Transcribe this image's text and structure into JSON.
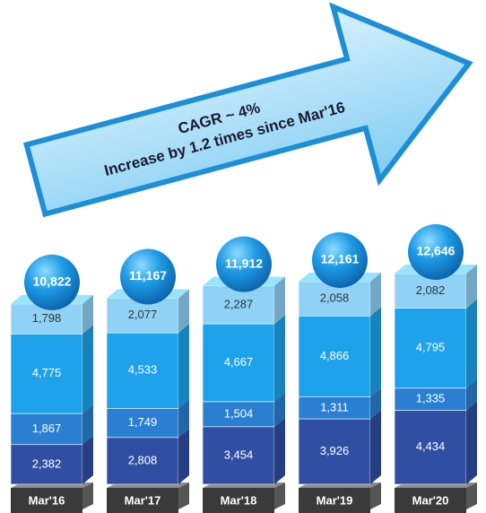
{
  "chart_data": {
    "type": "stacked-bar",
    "annotations": [
      "CAGR ~ 4%",
      "Increase by 1.2 times since Mar'16"
    ],
    "categories": [
      "Mar'16",
      "Mar'17",
      "Mar'18",
      "Mar'19",
      "Mar'20"
    ],
    "series": [
      {
        "color": "#2f4fa3",
        "values": [
          2382,
          2808,
          3454,
          3926,
          4434
        ],
        "value_labels": [
          "2,382",
          "2,808",
          "3,454",
          "3,926",
          "4,434"
        ]
      },
      {
        "color": "#2b7fd1",
        "values": [
          1867,
          1749,
          1504,
          1311,
          1335
        ],
        "value_labels": [
          "1,867",
          "1,749",
          "1,504",
          "1,311",
          "1,335"
        ]
      },
      {
        "color": "#1ea2ec",
        "values": [
          4775,
          4533,
          4667,
          4866,
          4795
        ],
        "value_labels": [
          "4,775",
          "4,533",
          "4,667",
          "4,866",
          "4,795"
        ]
      },
      {
        "color": "#8fd2f5",
        "values": [
          1798,
          2077,
          2287,
          2058,
          2082
        ],
        "value_labels": [
          "1,798",
          "2,077",
          "2,287",
          "2,058",
          "2,082"
        ]
      }
    ],
    "totals": [
      10822,
      11167,
      11912,
      12161,
      12646
    ],
    "total_labels": [
      "10,822",
      "11,167",
      "11,912",
      "12,161",
      "12,646"
    ]
  }
}
